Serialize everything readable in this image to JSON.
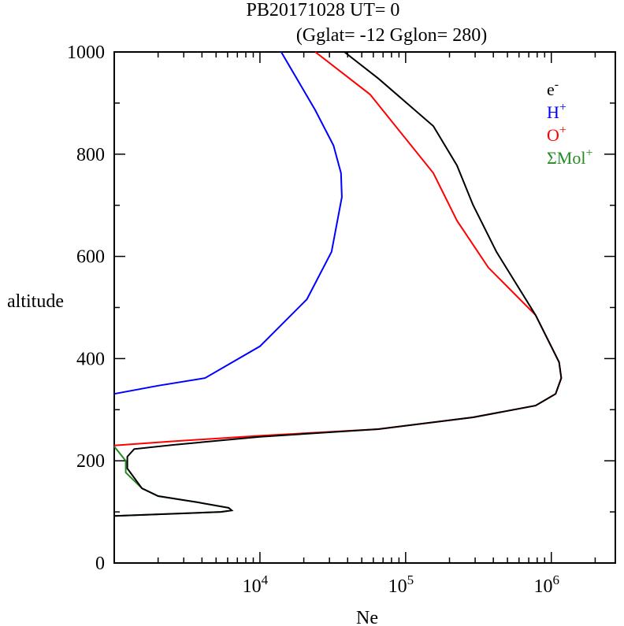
{
  "chart_data": {
    "type": "line",
    "title": "PB20171028   UT=  0",
    "subtitle": "(Gglat= -12   Gglon=  280)",
    "xlabel": "Ne",
    "ylabel": "altitude",
    "xscale": "log",
    "xlim": [
      1000,
      2750000
    ],
    "ylim": [
      0,
      1000
    ],
    "yticks": [
      "0",
      "200",
      "400",
      "600",
      "800",
      "1000"
    ],
    "xticks": [
      {
        "base": "10",
        "exp": "4",
        "value": 10000
      },
      {
        "base": "10",
        "exp": "5",
        "value": 100000
      },
      {
        "base": "10",
        "exp": "6",
        "value": 1000000
      }
    ],
    "legend_position": "top-right",
    "series": [
      {
        "name": "e",
        "sup": "-",
        "color": "#000000",
        "points": [
          [
            38000,
            1000
          ],
          [
            65000,
            948
          ],
          [
            155000,
            855
          ],
          [
            225000,
            778
          ],
          [
            290000,
            701
          ],
          [
            420000,
            609
          ],
          [
            780000,
            485
          ],
          [
            1130000,
            393
          ],
          [
            1170000,
            362
          ],
          [
            1070000,
            331
          ],
          [
            780000,
            308
          ],
          [
            290000,
            285
          ],
          [
            65000,
            262
          ],
          [
            10000,
            247
          ],
          [
            2500,
            231
          ],
          [
            1370,
            223
          ],
          [
            1230,
            208
          ],
          [
            1230,
            185
          ],
          [
            1550,
            146
          ],
          [
            2000,
            131
          ],
          [
            3700,
            119
          ],
          [
            6100,
            108
          ],
          [
            6400,
            103
          ],
          [
            5400,
            100
          ],
          [
            1000,
            92
          ]
        ]
      },
      {
        "name": "H",
        "sup": "+",
        "color": "#0000ff",
        "points": [
          [
            14000,
            1000
          ],
          [
            24000,
            886
          ],
          [
            32000,
            817
          ],
          [
            36000,
            763
          ],
          [
            36500,
            716
          ],
          [
            31000,
            609
          ],
          [
            21000,
            516
          ],
          [
            10000,
            424
          ],
          [
            4200,
            362
          ],
          [
            2000,
            347
          ],
          [
            1000,
            331
          ]
        ]
      },
      {
        "name": "O",
        "sup": "+",
        "color": "#ff0000",
        "points": [
          [
            24000,
            1000
          ],
          [
            57000,
            917
          ],
          [
            155000,
            763
          ],
          [
            225000,
            670
          ],
          [
            370000,
            578
          ],
          [
            780000,
            485
          ],
          [
            1130000,
            393
          ],
          [
            1170000,
            362
          ],
          [
            1070000,
            331
          ],
          [
            780000,
            308
          ],
          [
            290000,
            285
          ],
          [
            65000,
            262
          ],
          [
            10000,
            249
          ],
          [
            2500,
            238
          ],
          [
            1000,
            230
          ]
        ]
      },
      {
        "name": "ΣMol",
        "sup": "+",
        "color": "#228b22",
        "points": [
          [
            1000,
            228
          ],
          [
            1200,
            200
          ],
          [
            1200,
            177
          ],
          [
            1550,
            146
          ],
          [
            2000,
            131
          ],
          [
            3700,
            119
          ],
          [
            6100,
            108
          ],
          [
            6400,
            103
          ],
          [
            5400,
            100
          ],
          [
            1000,
            92
          ]
        ]
      }
    ]
  }
}
